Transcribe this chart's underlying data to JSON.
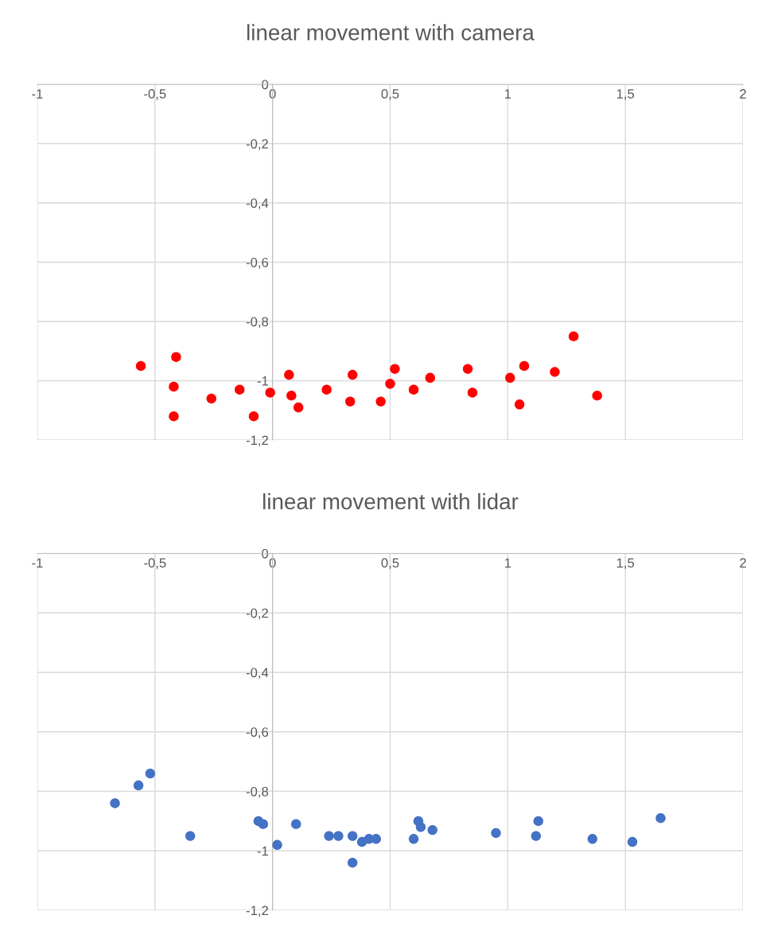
{
  "chart_data": [
    {
      "type": "scatter",
      "title": "linear movement with camera",
      "marker": "circle",
      "grid": true,
      "xlim": [
        -1,
        2
      ],
      "ylim": [
        -1.2,
        0
      ],
      "xticks": [
        {
          "value": -1,
          "label": "-1"
        },
        {
          "value": -0.5,
          "label": "-0,5"
        },
        {
          "value": 0,
          "label": "0"
        },
        {
          "value": 0.5,
          "label": "0,5"
        },
        {
          "value": 1,
          "label": "1"
        },
        {
          "value": 1.5,
          "label": "1,5"
        },
        {
          "value": 2,
          "label": "2"
        }
      ],
      "yticks": [
        {
          "value": 0,
          "label": "0"
        },
        {
          "value": -0.2,
          "label": "-0,2"
        },
        {
          "value": -0.4,
          "label": "-0,4"
        },
        {
          "value": -0.6,
          "label": "-0,6"
        },
        {
          "value": -0.8,
          "label": "-0,8"
        },
        {
          "value": -1,
          "label": "-1"
        },
        {
          "value": -1.2,
          "label": "-1,2"
        }
      ],
      "series": [
        {
          "color": "#ff0000",
          "x": [
            -0.56,
            -0.41,
            -0.42,
            -0.42,
            -0.26,
            -0.14,
            -0.08,
            -0.01,
            0.07,
            0.08,
            0.11,
            0.23,
            0.34,
            0.33,
            0.46,
            0.5,
            0.52,
            0.6,
            0.67,
            0.83,
            0.85,
            1.01,
            1.07,
            1.05,
            1.2,
            1.28,
            1.38
          ],
          "values": [
            -0.95,
            -0.92,
            -1.02,
            -1.12,
            -1.06,
            -1.03,
            -1.12,
            -1.04,
            -0.98,
            -1.05,
            -1.09,
            -1.03,
            -0.98,
            -1.07,
            -1.07,
            -1.01,
            -0.96,
            -1.03,
            -0.99,
            -0.96,
            -1.04,
            -0.99,
            -0.95,
            -1.08,
            -0.97,
            -0.85,
            -1.05
          ]
        }
      ]
    },
    {
      "type": "scatter",
      "title": "linear movement with lidar",
      "marker": "circle",
      "grid": true,
      "xlim": [
        -1,
        2
      ],
      "ylim": [
        -1.2,
        0
      ],
      "xticks": [
        {
          "value": -1,
          "label": "-1"
        },
        {
          "value": -0.5,
          "label": "-0,5"
        },
        {
          "value": 0,
          "label": "0"
        },
        {
          "value": 0.5,
          "label": "0,5"
        },
        {
          "value": 1,
          "label": "1"
        },
        {
          "value": 1.5,
          "label": "1,5"
        },
        {
          "value": 2,
          "label": "2"
        }
      ],
      "yticks": [
        {
          "value": 0,
          "label": "0"
        },
        {
          "value": -0.2,
          "label": "-0,2"
        },
        {
          "value": -0.4,
          "label": "-0,4"
        },
        {
          "value": -0.6,
          "label": "-0,6"
        },
        {
          "value": -0.8,
          "label": "-0,8"
        },
        {
          "value": -1,
          "label": "-1"
        },
        {
          "value": -1.2,
          "label": "-1,2"
        }
      ],
      "series": [
        {
          "color": "#4472c4",
          "x": [
            -0.67,
            -0.57,
            -0.52,
            -0.35,
            -0.06,
            -0.04,
            0.02,
            0.1,
            0.24,
            0.28,
            0.34,
            0.34,
            0.38,
            0.41,
            0.44,
            0.6,
            0.62,
            0.63,
            0.68,
            0.95,
            1.13,
            1.12,
            1.36,
            1.53,
            1.65
          ],
          "values": [
            -0.84,
            -0.78,
            -0.74,
            -0.95,
            -0.9,
            -0.91,
            -0.98,
            -0.91,
            -0.95,
            -0.95,
            -0.95,
            -1.04,
            -0.97,
            -0.96,
            -0.96,
            -0.96,
            -0.9,
            -0.92,
            -0.93,
            -0.94,
            -0.9,
            -0.95,
            -0.96,
            -0.97,
            -0.89
          ]
        }
      ]
    }
  ]
}
